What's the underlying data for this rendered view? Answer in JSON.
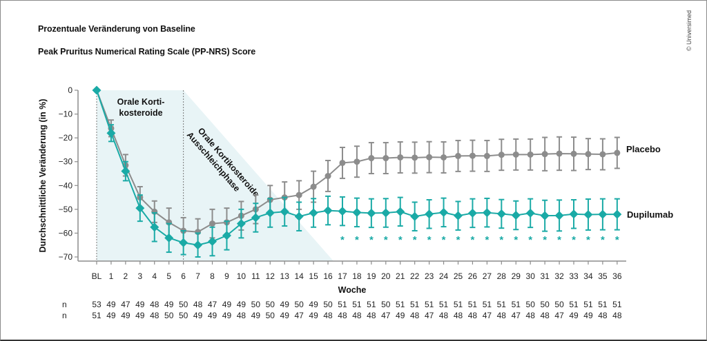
{
  "header": {
    "title": "Prozentuale Veränderung von Baseline",
    "subtitle": "Peak Pruritus Numerical Rating Scale (PP-NRS) Score",
    "copyright": "© Universimed"
  },
  "colors": {
    "placebo": "#8c8c8c",
    "dupilumab": "#1aaaa6",
    "phase_shade": "#e8f4f6",
    "axis": "#8c8c8c"
  },
  "chart_data": {
    "type": "line",
    "title": "Peak Pruritus Numerical Rating Scale (PP-NRS) Score",
    "xlabel": "Woche",
    "ylabel": "Durchschnittliche Veränderung (in %)",
    "ylim": [
      -70,
      0
    ],
    "yticks": [
      "0",
      "−10",
      "−20",
      "−30",
      "−40",
      "−50",
      "−60",
      "−70"
    ],
    "ytick_values": [
      0,
      -10,
      -20,
      -30,
      -40,
      -50,
      -60,
      -70
    ],
    "categories": [
      "BL",
      "1",
      "2",
      "3",
      "4",
      "5",
      "6",
      "7",
      "8",
      "9",
      "10",
      "11",
      "12",
      "13",
      "14",
      "15",
      "16",
      "17",
      "18",
      "19",
      "20",
      "21",
      "22",
      "23",
      "24",
      "25",
      "26",
      "27",
      "28",
      "29",
      "30",
      "31",
      "32",
      "33",
      "34",
      "35",
      "36"
    ],
    "phases": [
      {
        "label_lines": [
          "Orale Korti-",
          "kosteroide"
        ],
        "from": "BL",
        "to": "6"
      },
      {
        "label_lines": [
          "Orale Kortikosteroide",
          "Ausschleichphase"
        ],
        "from": "6",
        "to": "16"
      }
    ],
    "series": [
      {
        "name": "Placebo",
        "marker": "circle",
        "values": [
          0,
          -16,
          -31.5,
          -45,
          -51,
          -55.5,
          -59,
          -59.5,
          -56,
          -55.5,
          -52.7,
          -50,
          -46,
          -45,
          -44,
          -40.5,
          -36,
          -30.5,
          -30,
          -28.5,
          -28.5,
          -28.2,
          -28.3,
          -28.1,
          -28.2,
          -27.6,
          -27.5,
          -27.6,
          -27.1,
          -27,
          -27,
          -26.8,
          -26.6,
          -26.7,
          -26.8,
          -26.9,
          -26.3
        ],
        "error": [
          0,
          3.5,
          4.5,
          4.5,
          4.5,
          6,
          5.5,
          5.5,
          6,
          6,
          6,
          6,
          6,
          6.5,
          6,
          6.5,
          6.5,
          6.5,
          6.5,
          6.5,
          6.5,
          6.5,
          6.5,
          6.5,
          6.5,
          6.5,
          6.5,
          6.5,
          6.5,
          6.5,
          6.5,
          7,
          7,
          7,
          6.5,
          6.5,
          6.5
        ],
        "n": [
          "53",
          "49",
          "47",
          "49",
          "48",
          "49",
          "50",
          "48",
          "47",
          "49",
          "49",
          "50",
          "50",
          "49",
          "50",
          "49",
          "50",
          "51",
          "51",
          "51",
          "50",
          "51",
          "51",
          "51",
          "51",
          "51",
          "51",
          "51",
          "51",
          "51",
          "50",
          "50",
          "50",
          "51",
          "51",
          "51",
          "51"
        ]
      },
      {
        "name": "Dupilumab",
        "marker": "diamond",
        "values": [
          0,
          -18,
          -34,
          -49.5,
          -57.5,
          -62,
          -64,
          -65,
          -63.5,
          -61,
          -56,
          -53.5,
          -51.5,
          -51,
          -53,
          -51.5,
          -50.5,
          -50.8,
          -51.3,
          -51.6,
          -51.5,
          -51,
          -53,
          -52,
          -51.3,
          -52.7,
          -51.6,
          -51.4,
          -51.9,
          -52.5,
          -51.6,
          -52.7,
          -52.6,
          -52,
          -52.2,
          -52.1,
          -52.1
        ],
        "error": [
          0,
          3.5,
          4,
          5.5,
          6,
          6,
          5,
          5,
          6,
          6,
          6,
          6,
          6,
          6,
          6,
          6,
          6,
          6,
          6,
          6,
          6,
          6,
          6,
          6,
          6,
          6,
          6,
          6,
          6,
          6,
          6,
          6.5,
          6.5,
          6,
          6.5,
          6.5,
          6.5
        ],
        "n": [
          "51",
          "49",
          "49",
          "49",
          "48",
          "50",
          "50",
          "49",
          "49",
          "49",
          "48",
          "49",
          "50",
          "49",
          "47",
          "49",
          "48",
          "48",
          "48",
          "48",
          "47",
          "49",
          "48",
          "47",
          "48",
          "48",
          "48",
          "47",
          "48",
          "47",
          "48",
          "48",
          "47",
          "49",
          "49",
          "48",
          "48"
        ],
        "significant_from": "17"
      }
    ],
    "significance_marker": "*",
    "n_row_label": "n",
    "legend": "right"
  }
}
